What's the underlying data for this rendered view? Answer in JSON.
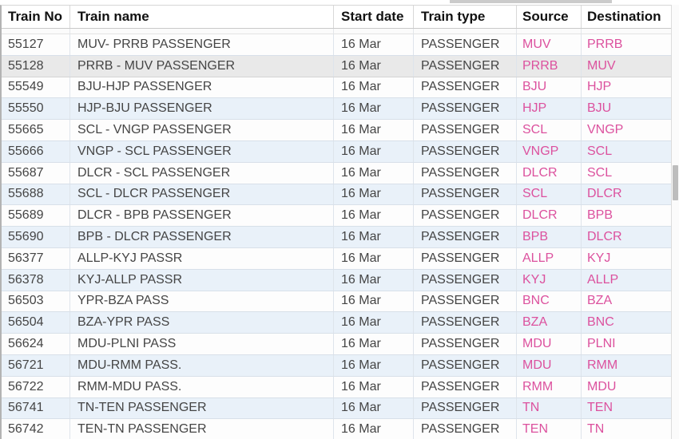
{
  "table": {
    "columns": [
      {
        "id": "no",
        "label": "Train No"
      },
      {
        "id": "name",
        "label": "Train name"
      },
      {
        "id": "date",
        "label": "Start date"
      },
      {
        "id": "type",
        "label": "Train type"
      },
      {
        "id": "src",
        "label": "Source"
      },
      {
        "id": "dst",
        "label": "Destination"
      }
    ],
    "highlighted_row_index": 1,
    "rows": [
      {
        "no": "55127",
        "name": "MUV- PRRB PASSENGER",
        "date": "16 Mar",
        "type": "PASSENGER",
        "src": "MUV",
        "dst": "PRRB"
      },
      {
        "no": "55128",
        "name": "PRRB - MUV PASSENGER",
        "date": "16 Mar",
        "type": "PASSENGER",
        "src": "PRRB",
        "dst": "MUV"
      },
      {
        "no": "55549",
        "name": "BJU-HJP PASSENGER",
        "date": "16 Mar",
        "type": "PASSENGER",
        "src": "BJU",
        "dst": "HJP"
      },
      {
        "no": "55550",
        "name": "HJP-BJU PASSENGER",
        "date": "16 Mar",
        "type": "PASSENGER",
        "src": "HJP",
        "dst": "BJU"
      },
      {
        "no": "55665",
        "name": "SCL - VNGP PASSENGER",
        "date": "16 Mar",
        "type": "PASSENGER",
        "src": "SCL",
        "dst": "VNGP"
      },
      {
        "no": "55666",
        "name": "VNGP - SCL PASSENGER",
        "date": "16 Mar",
        "type": "PASSENGER",
        "src": "VNGP",
        "dst": "SCL"
      },
      {
        "no": "55687",
        "name": "DLCR - SCL PASSENGER",
        "date": "16 Mar",
        "type": "PASSENGER",
        "src": "DLCR",
        "dst": "SCL"
      },
      {
        "no": "55688",
        "name": "SCL - DLCR PASSENGER",
        "date": "16 Mar",
        "type": "PASSENGER",
        "src": "SCL",
        "dst": "DLCR"
      },
      {
        "no": "55689",
        "name": "DLCR - BPB PASSENGER",
        "date": "16 Mar",
        "type": "PASSENGER",
        "src": "DLCR",
        "dst": "BPB"
      },
      {
        "no": "55690",
        "name": "BPB - DLCR PASSENGER",
        "date": "16 Mar",
        "type": "PASSENGER",
        "src": "BPB",
        "dst": "DLCR"
      },
      {
        "no": "56377",
        "name": "ALLP-KYJ PASSR",
        "date": "16 Mar",
        "type": "PASSENGER",
        "src": "ALLP",
        "dst": "KYJ"
      },
      {
        "no": "56378",
        "name": "KYJ-ALLP PASSR",
        "date": "16 Mar",
        "type": "PASSENGER",
        "src": "KYJ",
        "dst": "ALLP"
      },
      {
        "no": "56503",
        "name": "YPR-BZA PASS",
        "date": "16 Mar",
        "type": "PASSENGER",
        "src": "BNC",
        "dst": "BZA"
      },
      {
        "no": "56504",
        "name": "BZA-YPR PASS",
        "date": "16 Mar",
        "type": "PASSENGER",
        "src": "BZA",
        "dst": "BNC"
      },
      {
        "no": "56624",
        "name": "MDU-PLNI PASS",
        "date": "16 Mar",
        "type": "PASSENGER",
        "src": "MDU",
        "dst": "PLNI"
      },
      {
        "no": "56721",
        "name": "MDU-RMM PASS.",
        "date": "16 Mar",
        "type": "PASSENGER",
        "src": "MDU",
        "dst": "RMM"
      },
      {
        "no": "56722",
        "name": "RMM-MDU PASS.",
        "date": "16 Mar",
        "type": "PASSENGER",
        "src": "RMM",
        "dst": "MDU"
      },
      {
        "no": "56741",
        "name": "TN-TEN PASSENGER",
        "date": "16 Mar",
        "type": "PASSENGER",
        "src": "TN",
        "dst": "TEN"
      },
      {
        "no": "56742",
        "name": "TEN-TN PASSENGER",
        "date": "16 Mar",
        "type": "PASSENGER",
        "src": "TEN",
        "dst": "TN"
      }
    ]
  },
  "colors": {
    "link_pink": "#dc519e",
    "stripe_blue": "#e9f1f9",
    "highlight_gray": "#e9e9e9",
    "body_text": "#454545",
    "header_text": "#111111"
  }
}
